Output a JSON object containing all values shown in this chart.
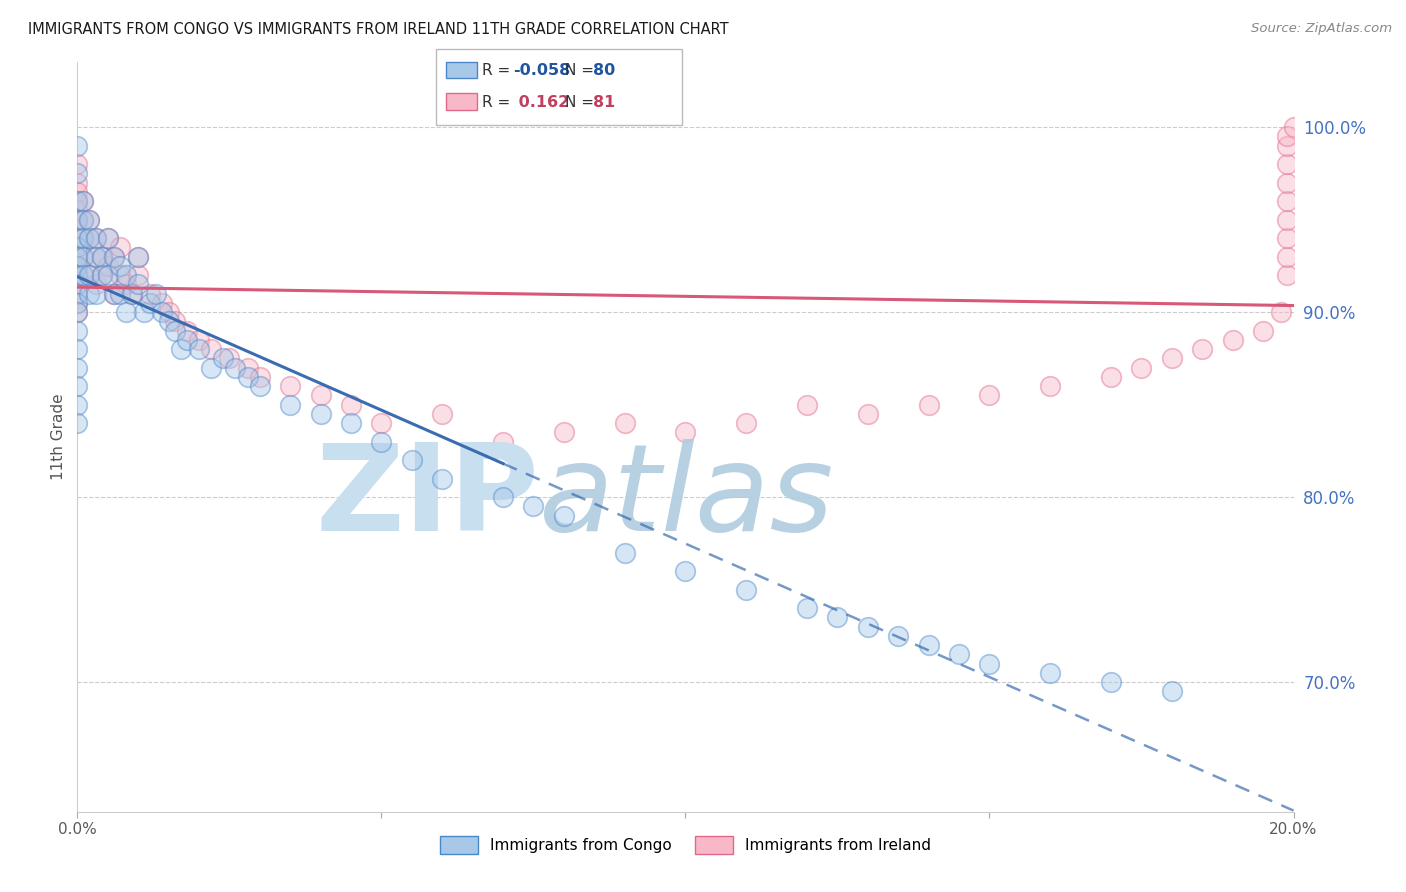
{
  "title": "IMMIGRANTS FROM CONGO VS IMMIGRANTS FROM IRELAND 11TH GRADE CORRELATION CHART",
  "source": "Source: ZipAtlas.com",
  "ylabel": "11th Grade",
  "x_min": 0.0,
  "x_max": 20.0,
  "y_min": 63.0,
  "y_max": 103.5,
  "y_ticks": [
    70.0,
    80.0,
    90.0,
    100.0
  ],
  "y_tick_labels": [
    "70.0%",
    "80.0%",
    "90.0%",
    "100.0%"
  ],
  "congo_color_face": "#a8c8e8",
  "congo_color_edge": "#4a86c8",
  "ireland_color_face": "#f8b8c8",
  "ireland_color_edge": "#e06888",
  "trend_congo_color": "#3a6cb0",
  "trend_ireland_color": "#d85878",
  "congo_R": -0.058,
  "ireland_R": 0.162,
  "congo_N": 80,
  "ireland_N": 81,
  "watermark_zip_color": "#c8dff0",
  "watermark_atlas_color": "#b0cce0",
  "tick_label_color": "#5a5a5a",
  "right_tick_color": "#4472C4",
  "legend_R_congo_color": "#2155a0",
  "legend_N_congo_color": "#2155a0",
  "legend_R_ireland_color": "#c04060",
  "legend_N_ireland_color": "#c04060",
  "congo_x": [
    0.0,
    0.0,
    0.0,
    0.0,
    0.0,
    0.0,
    0.0,
    0.0,
    0.0,
    0.0,
    0.0,
    0.0,
    0.0,
    0.0,
    0.0,
    0.0,
    0.0,
    0.0,
    0.0,
    0.1,
    0.1,
    0.1,
    0.1,
    0.1,
    0.2,
    0.2,
    0.2,
    0.2,
    0.3,
    0.3,
    0.3,
    0.4,
    0.4,
    0.5,
    0.5,
    0.6,
    0.6,
    0.7,
    0.7,
    0.8,
    0.8,
    0.9,
    1.0,
    1.0,
    1.1,
    1.2,
    1.3,
    1.4,
    1.5,
    1.6,
    1.7,
    1.8,
    2.0,
    2.2,
    2.4,
    2.6,
    2.8,
    3.0,
    3.5,
    4.0,
    4.5,
    5.0,
    5.5,
    6.0,
    7.0,
    7.5,
    8.0,
    9.0,
    10.0,
    11.0,
    12.0,
    12.5,
    13.0,
    13.5,
    14.0,
    14.5,
    15.0,
    16.0,
    17.0,
    18.0
  ],
  "congo_y": [
    99.0,
    97.5,
    96.0,
    95.0,
    94.0,
    93.5,
    93.0,
    92.5,
    92.0,
    91.5,
    91.0,
    90.5,
    90.0,
    89.0,
    88.0,
    87.0,
    86.0,
    85.0,
    84.0,
    96.0,
    95.0,
    94.0,
    93.0,
    92.0,
    95.0,
    94.0,
    92.0,
    91.0,
    94.0,
    93.0,
    91.0,
    93.0,
    92.0,
    94.0,
    92.0,
    93.0,
    91.0,
    92.5,
    91.0,
    92.0,
    90.0,
    91.0,
    93.0,
    91.5,
    90.0,
    90.5,
    91.0,
    90.0,
    89.5,
    89.0,
    88.0,
    88.5,
    88.0,
    87.0,
    87.5,
    87.0,
    86.5,
    86.0,
    85.0,
    84.5,
    84.0,
    83.0,
    82.0,
    81.0,
    80.0,
    79.5,
    79.0,
    77.0,
    76.0,
    75.0,
    74.0,
    73.5,
    73.0,
    72.5,
    72.0,
    71.5,
    71.0,
    70.5,
    70.0,
    69.5
  ],
  "ireland_x": [
    0.0,
    0.0,
    0.0,
    0.0,
    0.0,
    0.0,
    0.0,
    0.0,
    0.0,
    0.0,
    0.0,
    0.0,
    0.0,
    0.0,
    0.0,
    0.0,
    0.1,
    0.1,
    0.1,
    0.1,
    0.1,
    0.2,
    0.2,
    0.2,
    0.3,
    0.3,
    0.3,
    0.4,
    0.4,
    0.5,
    0.5,
    0.6,
    0.6,
    0.7,
    0.7,
    0.8,
    0.9,
    1.0,
    1.0,
    1.2,
    1.4,
    1.5,
    1.6,
    1.8,
    2.0,
    2.2,
    2.5,
    2.8,
    3.0,
    3.5,
    4.0,
    4.5,
    5.0,
    6.0,
    7.0,
    8.0,
    9.0,
    10.0,
    11.0,
    12.0,
    13.0,
    14.0,
    15.0,
    16.0,
    17.0,
    17.5,
    18.0,
    18.5,
    19.0,
    19.5,
    19.8,
    19.9,
    19.9,
    19.9,
    19.9,
    19.9,
    19.9,
    19.9,
    19.9,
    19.9,
    20.0
  ],
  "ireland_y": [
    98.0,
    97.0,
    96.5,
    96.0,
    95.5,
    95.0,
    94.5,
    94.0,
    93.5,
    93.0,
    92.5,
    92.0,
    91.5,
    91.0,
    90.5,
    90.0,
    96.0,
    95.0,
    94.0,
    93.0,
    92.0,
    95.0,
    94.0,
    92.0,
    94.0,
    93.0,
    91.5,
    93.0,
    92.0,
    94.0,
    92.5,
    93.0,
    91.0,
    93.5,
    92.0,
    91.5,
    91.0,
    93.0,
    92.0,
    91.0,
    90.5,
    90.0,
    89.5,
    89.0,
    88.5,
    88.0,
    87.5,
    87.0,
    86.5,
    86.0,
    85.5,
    85.0,
    84.0,
    84.5,
    83.0,
    83.5,
    84.0,
    83.5,
    84.0,
    85.0,
    84.5,
    85.0,
    85.5,
    86.0,
    86.5,
    87.0,
    87.5,
    88.0,
    88.5,
    89.0,
    90.0,
    92.0,
    93.0,
    94.0,
    95.0,
    96.0,
    97.0,
    98.0,
    99.0,
    99.5,
    100.0
  ]
}
